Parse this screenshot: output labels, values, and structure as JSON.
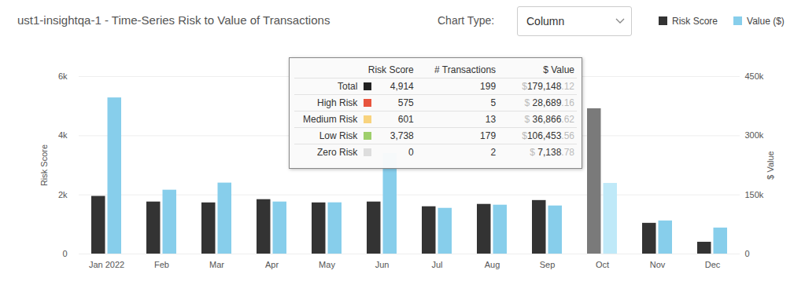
{
  "chart_data": {
    "type": "bar",
    "title": "ust1-insightqa-1 - Time-Series Risk to Value of Transactions",
    "controls": {
      "label": "Chart Type:",
      "value": "Column"
    },
    "categories": [
      "Jan 2022",
      "Feb",
      "Mar",
      "Apr",
      "May",
      "Jun",
      "Jul",
      "Aug",
      "Sep",
      "Oct",
      "Nov",
      "Dec"
    ],
    "series": [
      {
        "name": "Risk Score",
        "color": "#333333",
        "colors": [
          "#333333",
          "#333333",
          "#333333",
          "#333333",
          "#333333",
          "#333333",
          "#333333",
          "#333333",
          "#333333",
          "#7a7a7a",
          "#333333",
          "#333333"
        ],
        "values": [
          1950,
          1760,
          1730,
          1840,
          1730,
          1760,
          1600,
          1680,
          1810,
          4914,
          1040,
          400
        ]
      },
      {
        "name": "Value ($)",
        "color": "#87ceeb",
        "axis": "y2",
        "colors": [
          "#87ceeb",
          "#87ceeb",
          "#87ceeb",
          "#87ceeb",
          "#87ceeb",
          "#87ceeb",
          "#87ceeb",
          "#87ceeb",
          "#87ceeb",
          "#bfe9f8",
          "#87ceeb",
          "#87ceeb"
        ],
        "values": [
          396000,
          162000,
          180000,
          132000,
          130000,
          255000,
          116000,
          124000,
          122000,
          179148.12,
          84000,
          66000
        ]
      }
    ],
    "ylabel": "Risk Score",
    "ylim": [
      0,
      6000
    ],
    "yticks": [
      0,
      {
        "value": 2000,
        "label": "2k"
      },
      {
        "value": 4000,
        "label": "4k"
      },
      {
        "value": 6000,
        "label": "6k"
      }
    ],
    "y2label": "$ Value",
    "y2lim": [
      0,
      450000
    ],
    "y2ticks": [
      0,
      {
        "value": 150000,
        "label": "150k"
      },
      {
        "value": 300000,
        "label": "300k"
      },
      {
        "value": 450000,
        "label": "450k"
      }
    ],
    "grid": true,
    "legend": "top-right",
    "tooltip": {
      "columns": [
        "Risk Score",
        "# Transactions",
        "$ Value"
      ],
      "rows": [
        {
          "label": "Total",
          "color": "#222222",
          "risk": "4,914",
          "transactions": "199",
          "value": "$179,148.12"
        },
        {
          "label": "High Risk",
          "color": "#e8553e",
          "risk": "575",
          "transactions": "5",
          "value": "$ 28,689.16"
        },
        {
          "label": "Medium Risk",
          "color": "#f8d37e",
          "risk": "601",
          "transactions": "13",
          "value": "$ 36,866.62"
        },
        {
          "label": "Low Risk",
          "color": "#9ecf6b",
          "risk": "3,738",
          "transactions": "179",
          "value": "$106,453.56"
        },
        {
          "label": "Zero Risk",
          "color": "#dddddd",
          "risk": "0",
          "transactions": "2",
          "value": "$ 7,138.78"
        }
      ]
    }
  }
}
